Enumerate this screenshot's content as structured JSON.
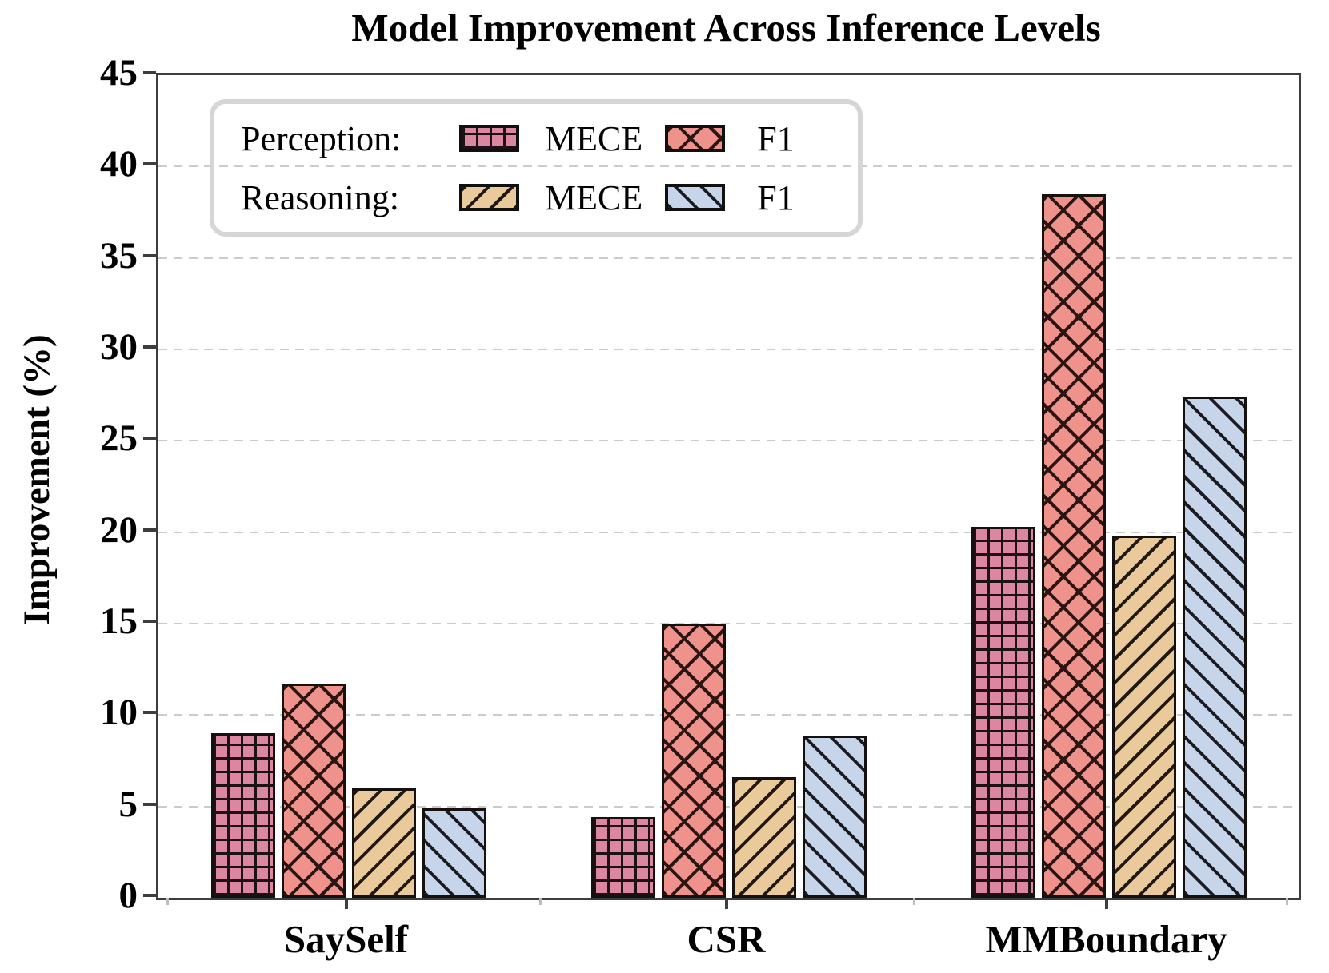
{
  "chart_data": {
    "type": "bar",
    "title": "Model Improvement Across Inference Levels",
    "xlabel": "",
    "ylabel": "Improvement (%)",
    "ylim": [
      0,
      45
    ],
    "yticks": [
      0,
      5,
      10,
      15,
      20,
      25,
      30,
      35,
      40,
      45
    ],
    "grid": "horizontal dashed gray lines at each y tick",
    "categories": [
      "SaySelf",
      "CSR",
      "MMBoundary"
    ],
    "series": [
      {
        "name": "Perception MECE",
        "group": "Perception:",
        "metric": "MECE",
        "values": [
          9.0,
          4.4,
          20.3
        ],
        "fill": "#dc86a0",
        "hatch": "grid",
        "hatch_color": "#1c1114"
      },
      {
        "name": "Perception F1",
        "group": "Perception:",
        "metric": "F1",
        "values": [
          11.7,
          15.0,
          38.5
        ],
        "fill": "#f0928c",
        "hatch": "cross-diagonal",
        "hatch_color": "#2b1512"
      },
      {
        "name": "Reasoning MECE",
        "group": "Reasoning:",
        "metric": "MECE",
        "values": [
          6.0,
          6.6,
          19.8
        ],
        "fill": "#eaca9b",
        "hatch": "diagonal-forward",
        "hatch_color": "#201812"
      },
      {
        "name": "Reasoning F1",
        "group": "Reasoning:",
        "metric": "F1",
        "values": [
          4.9,
          8.9,
          27.4
        ],
        "fill": "#c6d5e9",
        "hatch": "diagonal-back",
        "hatch_color": "#1b1b22"
      }
    ],
    "legend": {
      "position": "upper left",
      "rows": [
        {
          "group_label": "Perception:",
          "entries": [
            {
              "label": "MECE",
              "series_index": 0
            },
            {
              "label": "F1",
              "series_index": 1
            }
          ]
        },
        {
          "group_label": "Reasoning:",
          "entries": [
            {
              "label": "MECE",
              "series_index": 2
            },
            {
              "label": "F1",
              "series_index": 3
            }
          ]
        }
      ]
    },
    "colors": {
      "perception_mece": "#dc86a0",
      "perception_f1": "#f0928c",
      "reasoning_mece": "#eaca9b",
      "reasoning_f1": "#c6d5e9",
      "gridline": "#cbcbcb",
      "spine": "#3d3d3d",
      "legend_border": "#d6d6d6"
    }
  }
}
